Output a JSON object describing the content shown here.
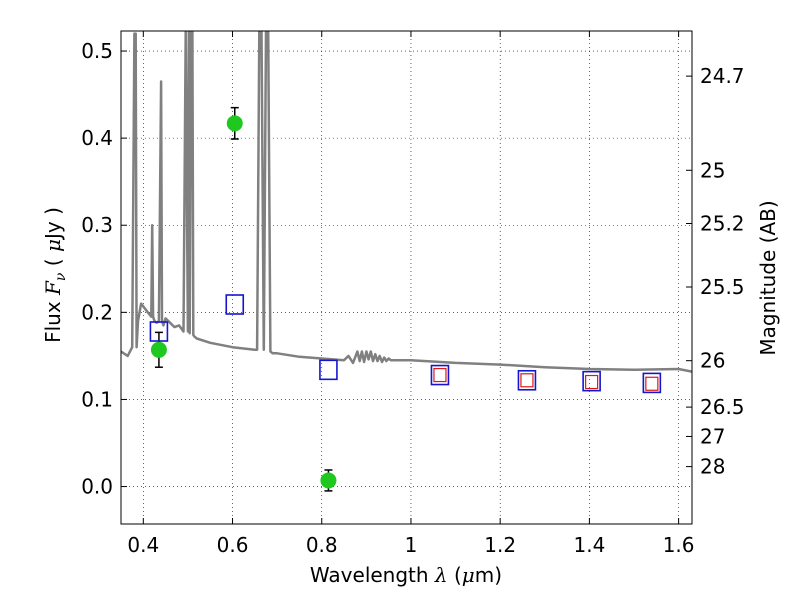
{
  "chart_data": {
    "type": "scatter",
    "xlabel": {
      "pre": "Wavelength ",
      "sym": "λ",
      "post": " (",
      "unit_sym": "μ",
      "unit": "m)"
    },
    "ylabel": {
      "pre": "Flux ",
      "sym": "F",
      "sub": "ν",
      "post": " ( ",
      "unit_sym": "μ",
      "unit": "Jy )"
    },
    "y2label": "Magnitude (AB)",
    "xlim": [
      0.35,
      1.63
    ],
    "ylim": [
      -0.043,
      0.523
    ],
    "xticks": [
      {
        "v": 0.4,
        "label": "0.4"
      },
      {
        "v": 0.6,
        "label": "0.6"
      },
      {
        "v": 0.8,
        "label": "0.8"
      },
      {
        "v": 1.0,
        "label": "1"
      },
      {
        "v": 1.2,
        "label": "1.2"
      },
      {
        "v": 1.4,
        "label": "1.4"
      },
      {
        "v": 1.6,
        "label": "1.6"
      }
    ],
    "yticks": [
      {
        "v": 0.0,
        "label": "0.0"
      },
      {
        "v": 0.1,
        "label": "0.1"
      },
      {
        "v": 0.2,
        "label": "0.2"
      },
      {
        "v": 0.3,
        "label": "0.3"
      },
      {
        "v": 0.4,
        "label": "0.4"
      },
      {
        "v": 0.5,
        "label": "0.5"
      }
    ],
    "y2ticks": [
      {
        "label": "24.7",
        "flux": 0.4712
      },
      {
        "label": "25",
        "flux": 0.3631
      },
      {
        "label": "25.2",
        "flux": 0.302
      },
      {
        "label": "25.5",
        "flux": 0.2291
      },
      {
        "label": "26",
        "flux": 0.1445
      },
      {
        "label": "26.5",
        "flux": 0.0912
      },
      {
        "label": "27",
        "flux": 0.0575
      },
      {
        "label": "28",
        "flux": 0.0229
      }
    ],
    "grid": true,
    "series": [
      {
        "kind": "line",
        "color": "#808080",
        "x": [
          0.35,
          0.365,
          0.375,
          0.38,
          0.383,
          0.385,
          0.388,
          0.395,
          0.41,
          0.418,
          0.42,
          0.422,
          0.425,
          0.43,
          0.435,
          0.44,
          0.442,
          0.445,
          0.45,
          0.46,
          0.47,
          0.48,
          0.49,
          0.495,
          0.5,
          0.502,
          0.504,
          0.507,
          0.51,
          0.512,
          0.515,
          0.52,
          0.55,
          0.6,
          0.65,
          0.655,
          0.66,
          0.665,
          0.67,
          0.675,
          0.68,
          0.685,
          0.69,
          0.7,
          0.75,
          0.8,
          0.85,
          0.86,
          0.87,
          0.88,
          0.885,
          0.89,
          0.895,
          0.9,
          0.905,
          0.91,
          0.915,
          0.92,
          0.925,
          0.93,
          0.935,
          0.94,
          0.945,
          0.95,
          0.955,
          0.96,
          1.0,
          1.1,
          1.2,
          1.3,
          1.4,
          1.5,
          1.6,
          1.63
        ],
        "y": [
          0.155,
          0.15,
          0.16,
          0.52,
          0.52,
          0.16,
          0.19,
          0.21,
          0.2,
          0.195,
          0.3,
          0.195,
          0.19,
          0.188,
          0.19,
          0.465,
          0.19,
          0.185,
          0.193,
          0.188,
          0.183,
          0.185,
          0.178,
          0.523,
          0.178,
          0.523,
          0.176,
          0.523,
          0.523,
          0.174,
          0.172,
          0.17,
          0.165,
          0.16,
          0.157,
          0.157,
          0.523,
          0.523,
          0.157,
          0.523,
          0.523,
          0.155,
          0.153,
          0.153,
          0.149,
          0.147,
          0.145,
          0.15,
          0.142,
          0.155,
          0.144,
          0.155,
          0.143,
          0.155,
          0.146,
          0.155,
          0.144,
          0.152,
          0.144,
          0.15,
          0.143,
          0.148,
          0.144,
          0.147,
          0.145,
          0.145,
          0.145,
          0.142,
          0.14,
          0.137,
          0.135,
          0.134,
          0.135,
          0.132
        ]
      },
      {
        "kind": "points",
        "marker": "circle",
        "color": "#1ec81e",
        "errorbars": true,
        "x": [
          0.435,
          0.605,
          0.815
        ],
        "y": [
          0.157,
          0.417,
          0.007
        ],
        "yerr": [
          0.02,
          0.018,
          0.012
        ]
      },
      {
        "kind": "points",
        "marker": "open-square",
        "color": "#1515d0",
        "x": [
          0.435,
          0.605,
          0.815,
          1.065,
          1.26,
          1.405,
          1.54
        ],
        "y": [
          0.178,
          0.209,
          0.134,
          0.128,
          0.122,
          0.121,
          0.119
        ]
      },
      {
        "kind": "points",
        "marker": "open-square-small",
        "color": "#d81a1a",
        "x": [
          1.065,
          1.26,
          1.405,
          1.54
        ],
        "y": [
          0.128,
          0.122,
          0.12,
          0.118
        ]
      }
    ]
  }
}
